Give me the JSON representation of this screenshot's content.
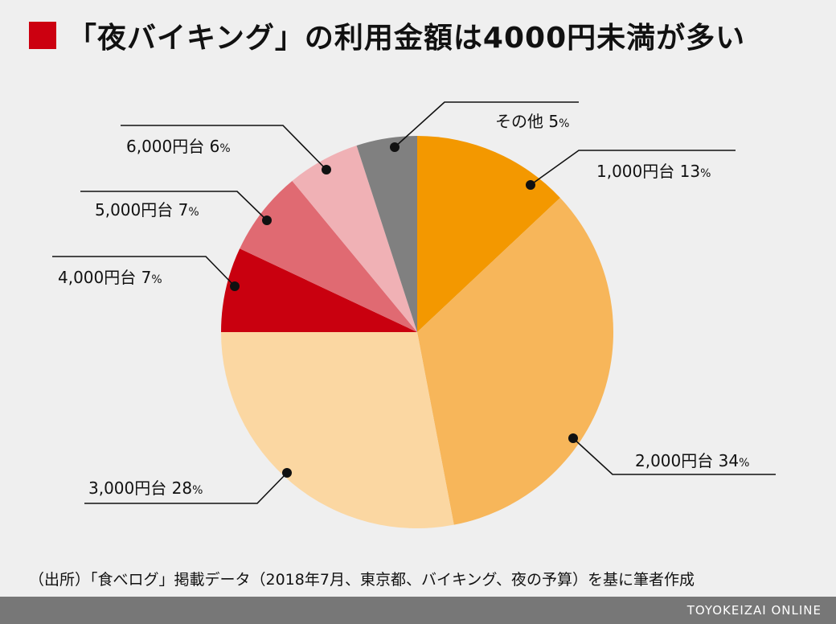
{
  "title": "「夜バイキング」の利用金額は4000円未満が多い",
  "colors": {
    "accent": "#cc0010",
    "footer": "#777777"
  },
  "source": "（出所）「食べログ」掲載データ（2018年7月、東京都、バイキング、夜の予算）を基に筆者作成",
  "footer": {
    "brand": "TOYOKEIZAI ONLINE"
  },
  "chart_data": {
    "type": "pie",
    "title": "「夜バイキング」の利用金額は4000円未満が多い",
    "unit": "%",
    "slices": [
      {
        "label": "1,000円台",
        "value": 13,
        "color": "#f39800"
      },
      {
        "label": "2,000円台",
        "value": 34,
        "color": "#f7b65a"
      },
      {
        "label": "3,000円台",
        "value": 28,
        "color": "#fbd7a2"
      },
      {
        "label": "4,000円台",
        "value": 7,
        "color": "#c9000f"
      },
      {
        "label": "5,000円台",
        "value": 7,
        "color": "#e06a72"
      },
      {
        "label": "6,000円台",
        "value": 6,
        "color": "#f0b1b5"
      },
      {
        "label": "その他",
        "value": 5,
        "color": "#808080"
      }
    ]
  }
}
